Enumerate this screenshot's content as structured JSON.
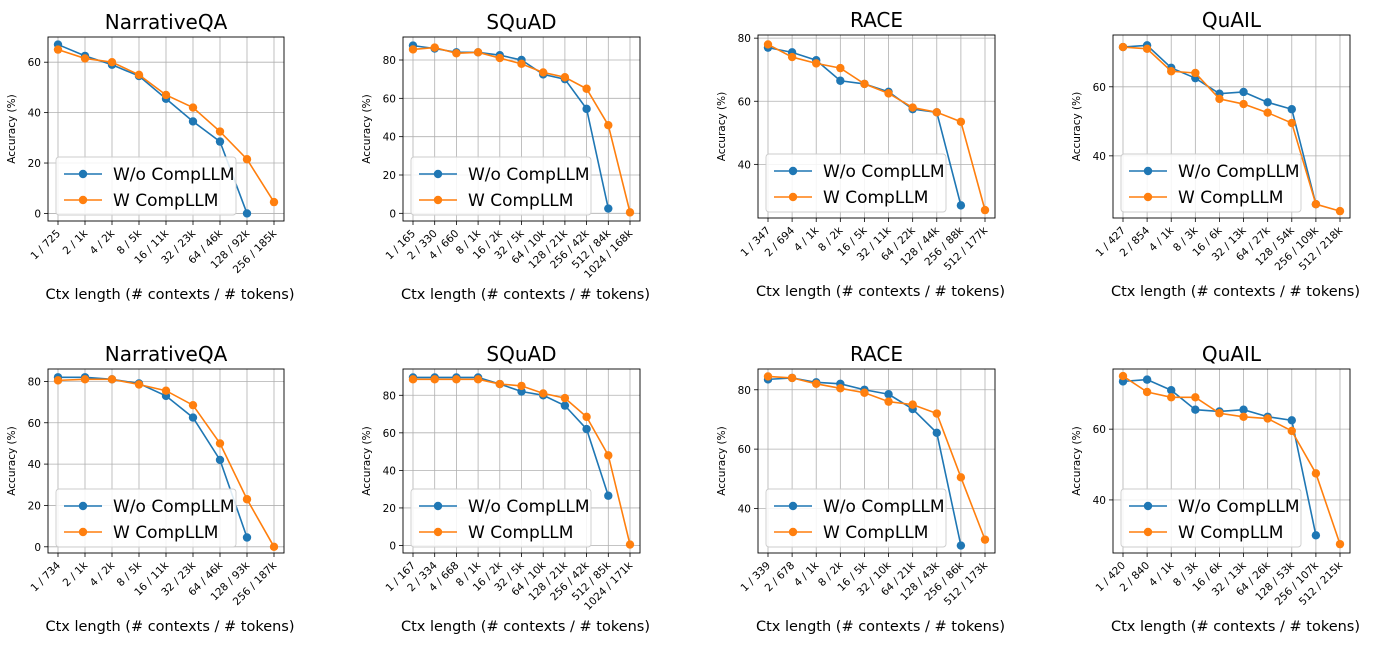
{
  "chart_data": [
    {
      "type": "line",
      "title": "NarrativeQA",
      "xlabel": "Ctx length (# contexts / # tokens)",
      "ylabel": "Accuracy (%)",
      "categories": [
        "1 / 725",
        "2 / 1k",
        "4 / 2k",
        "8 / 5k",
        "16 / 11k",
        "32 / 23k",
        "64 / 46k",
        "128 / 92k",
        "256 / 185k"
      ],
      "ylim": [
        -3,
        70
      ],
      "yticks": [
        0,
        20,
        40,
        60
      ],
      "series": [
        {
          "name": "W/o CompLLM",
          "color": "#1f77b4",
          "values": [
            67,
            62.5,
            59,
            54.5,
            45.5,
            36.5,
            28.5,
            0,
            null
          ]
        },
        {
          "name": "W CompLLM",
          "color": "#ff7f0e",
          "values": [
            65,
            61.5,
            60,
            55,
            47,
            42,
            32.5,
            21.5,
            4.5
          ]
        }
      ]
    },
    {
      "type": "line",
      "title": "SQuAD",
      "xlabel": "Ctx length (# contexts / # tokens)",
      "ylabel": "Accuracy (%)",
      "categories": [
        "1 / 165",
        "2 / 330",
        "4 / 660",
        "8 / 1k",
        "16 / 2k",
        "32 / 5k",
        "64 / 10k",
        "128 / 21k",
        "256 / 42k",
        "512 / 84k",
        "1024 / 168k"
      ],
      "ylim": [
        -4,
        92
      ],
      "yticks": [
        0,
        20,
        40,
        60,
        80
      ],
      "series": [
        {
          "name": "W/o CompLLM",
          "color": "#1f77b4",
          "values": [
            87.5,
            86,
            84,
            84,
            82.5,
            80,
            72.5,
            70,
            54.5,
            2.5,
            null
          ]
        },
        {
          "name": "W CompLLM",
          "color": "#ff7f0e",
          "values": [
            85.5,
            86.5,
            83.5,
            84,
            81,
            78,
            73.5,
            71,
            65,
            46,
            0.5
          ]
        }
      ]
    },
    {
      "type": "line",
      "title": "RACE",
      "xlabel": "Ctx length (# contexts / # tokens)",
      "ylabel": "Accuracy (%)",
      "categories": [
        "1 / 347",
        "2 / 694",
        "4 / 1k",
        "8 / 2k",
        "16 / 5k",
        "32 / 11k",
        "64 / 22k",
        "128 / 44k",
        "256 / 88k",
        "512 / 177k"
      ],
      "ylim": [
        23,
        81
      ],
      "yticks": [
        40,
        60,
        80
      ],
      "series": [
        {
          "name": "W/o CompLLM",
          "color": "#1f77b4",
          "values": [
            77,
            75.5,
            73,
            66.5,
            65.5,
            63,
            57.5,
            56.5,
            27,
            null
          ]
        },
        {
          "name": "W CompLLM",
          "color": "#ff7f0e",
          "values": [
            78,
            74,
            72,
            70.5,
            65.5,
            62.5,
            58,
            56.5,
            53.5,
            25.5
          ]
        }
      ]
    },
    {
      "type": "line",
      "title": "QuAIL",
      "xlabel": "Ctx length (# contexts / # tokens)",
      "ylabel": "Accuracy (%)",
      "categories": [
        "1 / 427",
        "2 / 854",
        "4 / 1k",
        "8 / 3k",
        "16 / 6k",
        "32 / 13k",
        "64 / 27k",
        "128 / 54k",
        "256 / 109k",
        "512 / 218k"
      ],
      "ylim": [
        22,
        75
      ],
      "yticks": [
        40,
        60
      ],
      "series": [
        {
          "name": "W/o CompLLM",
          "color": "#1f77b4",
          "values": [
            71.5,
            72,
            65.5,
            62.5,
            58,
            58.5,
            55.5,
            53.5,
            26,
            null
          ]
        },
        {
          "name": "W CompLLM",
          "color": "#ff7f0e",
          "values": [
            71.5,
            71,
            64.5,
            64,
            56.5,
            55,
            52.5,
            49.5,
            26,
            24
          ]
        }
      ]
    },
    {
      "type": "line",
      "title": "NarrativeQA",
      "xlabel": "Ctx length (# contexts / # tokens)",
      "ylabel": "Accuracy (%)",
      "categories": [
        "1 / 734",
        "2 / 1k",
        "4 / 2k",
        "8 / 5k",
        "16 / 11k",
        "32 / 23k",
        "64 / 46k",
        "128 / 93k",
        "256 / 187k"
      ],
      "ylim": [
        -3,
        86
      ],
      "yticks": [
        0,
        20,
        40,
        60,
        80
      ],
      "series": [
        {
          "name": "W/o CompLLM",
          "color": "#1f77b4",
          "values": [
            82,
            82,
            81,
            79,
            73,
            62.5,
            42,
            4.5,
            null
          ]
        },
        {
          "name": "W CompLLM",
          "color": "#ff7f0e",
          "values": [
            80.5,
            81,
            81,
            78.5,
            75.5,
            68.5,
            50,
            23,
            0
          ]
        }
      ]
    },
    {
      "type": "line",
      "title": "SQuAD",
      "xlabel": "Ctx length (# contexts / # tokens)",
      "ylabel": "Accuracy (%)",
      "categories": [
        "1 / 167",
        "2 / 334",
        "4 / 668",
        "8 / 1k",
        "16 / 2k",
        "32 / 5k",
        "64 / 10k",
        "128 / 21k",
        "256 / 42k",
        "512 / 85k",
        "1024 / 171k"
      ],
      "ylim": [
        -4,
        94
      ],
      "yticks": [
        0,
        20,
        40,
        60,
        80
      ],
      "series": [
        {
          "name": "W/o CompLLM",
          "color": "#1f77b4",
          "values": [
            89.5,
            89.5,
            89.5,
            89.5,
            86,
            82,
            80,
            74.5,
            62,
            26.5,
            null
          ]
        },
        {
          "name": "W CompLLM",
          "color": "#ff7f0e",
          "values": [
            88.5,
            88.5,
            88.5,
            88.5,
            86,
            85,
            81,
            78.5,
            68.5,
            48,
            0.5
          ]
        }
      ]
    },
    {
      "type": "line",
      "title": "RACE",
      "xlabel": "Ctx length (# contexts / # tokens)",
      "ylabel": "Accuracy (%)",
      "categories": [
        "1 / 339",
        "2 / 678",
        "4 / 1k",
        "8 / 2k",
        "16 / 5k",
        "32 / 10k",
        "64 / 21k",
        "128 / 43k",
        "256 / 86k",
        "512 / 173k"
      ],
      "ylim": [
        25,
        87
      ],
      "yticks": [
        40,
        60,
        80
      ],
      "series": [
        {
          "name": "W/o CompLLM",
          "color": "#1f77b4",
          "values": [
            83.5,
            84,
            82.5,
            82,
            80,
            78.5,
            73.5,
            65.5,
            27.5,
            null
          ]
        },
        {
          "name": "W CompLLM",
          "color": "#ff7f0e",
          "values": [
            84.5,
            84,
            82,
            80.5,
            79,
            76,
            75,
            72,
            50.5,
            29.5
          ]
        }
      ]
    },
    {
      "type": "line",
      "title": "QuAIL",
      "xlabel": "Ctx length (# contexts / # tokens)",
      "ylabel": "Accuracy (%)",
      "categories": [
        "1 / 420",
        "2 / 840",
        "4 / 1k",
        "8 / 3k",
        "16 / 6k",
        "32 / 13k",
        "64 / 26k",
        "128 / 53k",
        "256 / 107k",
        "512 / 215k"
      ],
      "ylim": [
        25,
        77
      ],
      "yticks": [
        40,
        60
      ],
      "series": [
        {
          "name": "W/o CompLLM",
          "color": "#1f77b4",
          "values": [
            73.5,
            74,
            71,
            65.5,
            65,
            65.5,
            63.5,
            62.5,
            30,
            null
          ]
        },
        {
          "name": "W CompLLM",
          "color": "#ff7f0e",
          "values": [
            75,
            70.5,
            69,
            69,
            64.5,
            63.5,
            63,
            59.5,
            47.5,
            27.5
          ]
        }
      ]
    }
  ]
}
